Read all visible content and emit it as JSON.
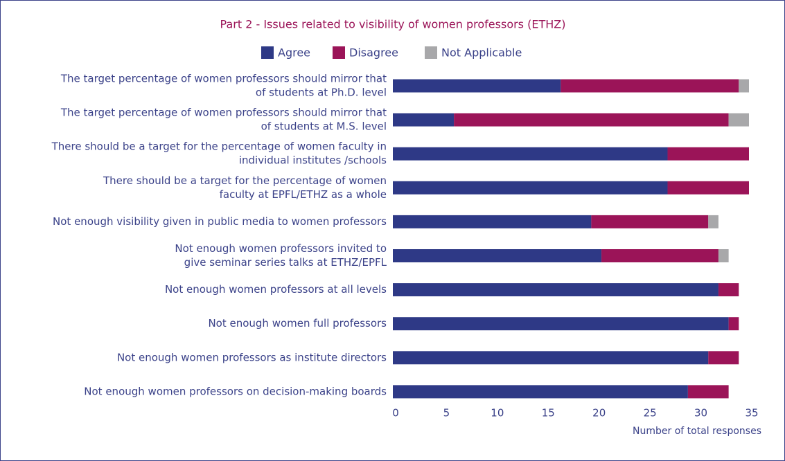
{
  "chart_data": {
    "type": "stacked_barh",
    "title": "Part 2 - Issues related to visibility of women professors (ETHZ)",
    "x_label": "Number of total responses",
    "categories": [
      [
        "The target percentage of women professors should mirror that",
        "of students at Ph.D. level"
      ],
      [
        "The target percentage of women professors should mirror that",
        "of students at M.S. level"
      ],
      [
        "There should be a target for the percentage of women faculty in",
        "individual institutes /schools"
      ],
      [
        "There should be a target for the percentage of women",
        "faculty at EPFL/ETHZ as a whole"
      ],
      [
        "Not enough visibility given in public media to women professors"
      ],
      [
        "Not enough women professors invited to",
        "give seminar series talks at ETHZ/EPFL"
      ],
      [
        "Not enough women professors at all levels"
      ],
      [
        "Not enough women full professors"
      ],
      [
        "Not enough women professors as institute directors"
      ],
      [
        "Not enough women professors on decision-making boards"
      ]
    ],
    "series": [
      {
        "name": "Agree",
        "color": "#2e3986",
        "values": [
          16.5,
          6,
          27,
          27,
          19.5,
          20.5,
          32,
          33,
          31,
          29
        ]
      },
      {
        "name": "Disagree",
        "color": "#9b1458",
        "values": [
          17.5,
          27,
          8,
          8,
          11.5,
          11.5,
          2,
          1,
          3,
          4
        ]
      },
      {
        "name": "Not Applicable",
        "color": "#a8a8aa",
        "values": [
          1,
          2,
          0,
          0,
          1,
          1,
          0,
          0,
          0,
          0
        ]
      }
    ],
    "xlim": [
      0,
      35
    ],
    "xticks": [
      0,
      5,
      10,
      15,
      20,
      25,
      30,
      35
    ],
    "legend": "top"
  }
}
